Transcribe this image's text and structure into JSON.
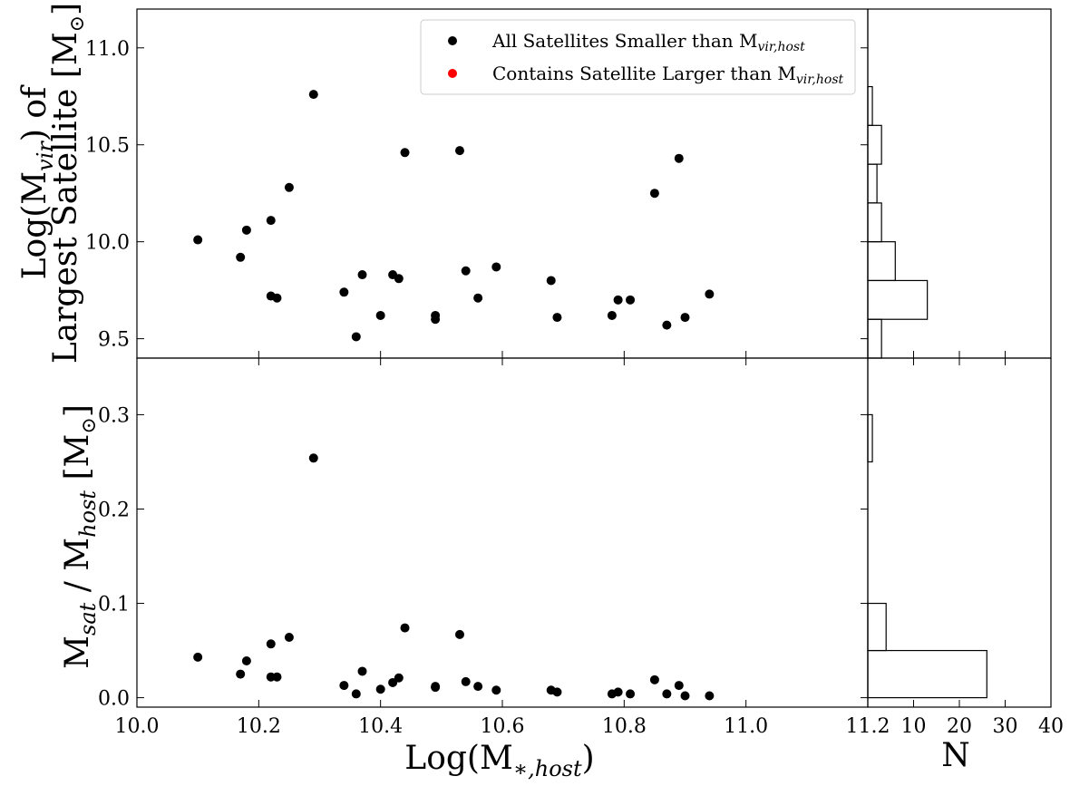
{
  "chart_data": [
    {
      "panel": "top-scatter",
      "type": "scatter",
      "ylabel_lines": [
        "Log(M",
        "vir",
        ") of",
        "Largest Satellite [M",
        "⊙",
        "]"
      ],
      "xlim": [
        10.0,
        11.2
      ],
      "ylim": [
        9.4,
        11.2
      ],
      "yticks": [
        9.5,
        10.0,
        10.5,
        11.0
      ],
      "ytick_labels": [
        "9.5",
        "10.0",
        "10.5",
        "11.0"
      ],
      "legend": {
        "placement": "top-center",
        "entries": [
          {
            "label_main": "All Satellites Smaller than M",
            "label_sub": "vir,host",
            "color": "#000000"
          },
          {
            "label_main": "Contains Satellite Larger than M",
            "label_sub": "vir,host",
            "color": "#ff0000"
          }
        ]
      },
      "series": [
        {
          "color": "#000000",
          "points": [
            [
              10.1,
              10.01
            ],
            [
              10.17,
              9.92
            ],
            [
              10.18,
              10.06
            ],
            [
              10.22,
              10.11
            ],
            [
              10.22,
              9.72
            ],
            [
              10.23,
              9.71
            ],
            [
              10.25,
              10.28
            ],
            [
              10.29,
              10.76
            ],
            [
              10.34,
              9.74
            ],
            [
              10.36,
              9.51
            ],
            [
              10.37,
              9.83
            ],
            [
              10.4,
              9.62
            ],
            [
              10.42,
              9.83
            ],
            [
              10.43,
              9.81
            ],
            [
              10.44,
              10.46
            ],
            [
              10.49,
              9.62
            ],
            [
              10.49,
              9.6
            ],
            [
              10.53,
              10.47
            ],
            [
              10.54,
              9.85
            ],
            [
              10.56,
              9.71
            ],
            [
              10.59,
              9.87
            ],
            [
              10.68,
              9.8
            ],
            [
              10.69,
              9.61
            ],
            [
              10.78,
              9.62
            ],
            [
              10.79,
              9.7
            ],
            [
              10.81,
              9.7
            ],
            [
              10.85,
              10.25
            ],
            [
              10.87,
              9.57
            ],
            [
              10.89,
              10.43
            ],
            [
              10.9,
              9.61
            ],
            [
              10.94,
              9.73
            ]
          ]
        }
      ]
    },
    {
      "panel": "top-histogram",
      "type": "bar",
      "orientation": "horizontal",
      "xlim": [
        0,
        40
      ],
      "bins": [
        {
          "low": 9.4,
          "high": 9.6,
          "count": 3
        },
        {
          "low": 9.6,
          "high": 9.8,
          "count": 13
        },
        {
          "low": 9.8,
          "high": 10.0,
          "count": 6
        },
        {
          "low": 10.0,
          "high": 10.2,
          "count": 3
        },
        {
          "low": 10.2,
          "high": 10.4,
          "count": 2
        },
        {
          "low": 10.4,
          "high": 10.6,
          "count": 3
        },
        {
          "low": 10.6,
          "high": 10.8,
          "count": 1
        }
      ]
    },
    {
      "panel": "bottom-scatter",
      "type": "scatter",
      "ylabel_lines": [
        "M",
        "sat",
        " / M",
        "host",
        " [M",
        "⊙",
        "]"
      ],
      "xlabel_main": "Log(M",
      "xlabel_sub": "∗,host",
      "xlabel_close": ")",
      "xlim": [
        10.0,
        11.2
      ],
      "ylim": [
        -0.01,
        0.36
      ],
      "xticks": [
        10.0,
        10.2,
        10.4,
        10.6,
        10.8,
        11.0,
        11.2
      ],
      "xtick_labels": [
        "10.0",
        "10.2",
        "10.4",
        "10.6",
        "10.8",
        "11.0",
        "11.2"
      ],
      "yticks": [
        0.0,
        0.1,
        0.2,
        0.3
      ],
      "ytick_labels": [
        "0.0",
        "0.1",
        "0.2",
        "0.3"
      ],
      "series": [
        {
          "color": "#000000",
          "points": [
            [
              10.1,
              0.043
            ],
            [
              10.17,
              0.025
            ],
            [
              10.18,
              0.039
            ],
            [
              10.22,
              0.057
            ],
            [
              10.22,
              0.022
            ],
            [
              10.23,
              0.022
            ],
            [
              10.25,
              0.064
            ],
            [
              10.29,
              0.254
            ],
            [
              10.34,
              0.013
            ],
            [
              10.36,
              0.004
            ],
            [
              10.37,
              0.028
            ],
            [
              10.4,
              0.009
            ],
            [
              10.42,
              0.016
            ],
            [
              10.43,
              0.021
            ],
            [
              10.44,
              0.074
            ],
            [
              10.49,
              0.012
            ],
            [
              10.49,
              0.011
            ],
            [
              10.53,
              0.067
            ],
            [
              10.54,
              0.017
            ],
            [
              10.56,
              0.012
            ],
            [
              10.59,
              0.008
            ],
            [
              10.68,
              0.008
            ],
            [
              10.69,
              0.006
            ],
            [
              10.78,
              0.004
            ],
            [
              10.79,
              0.006
            ],
            [
              10.81,
              0.004
            ],
            [
              10.85,
              0.019
            ],
            [
              10.87,
              0.004
            ],
            [
              10.89,
              0.013
            ],
            [
              10.9,
              0.002
            ],
            [
              10.94,
              0.002
            ]
          ]
        }
      ]
    },
    {
      "panel": "bottom-histogram",
      "type": "bar",
      "orientation": "horizontal",
      "xlabel": "N",
      "xlim": [
        0,
        40
      ],
      "xticks": [
        10,
        20,
        30,
        40
      ],
      "xtick_labels": [
        "10",
        "20",
        "30",
        "40"
      ],
      "bins": [
        {
          "low": 0.0,
          "high": 0.05,
          "count": 26
        },
        {
          "low": 0.05,
          "high": 0.1,
          "count": 4
        },
        {
          "low": 0.25,
          "high": 0.3,
          "count": 1
        }
      ]
    }
  ]
}
